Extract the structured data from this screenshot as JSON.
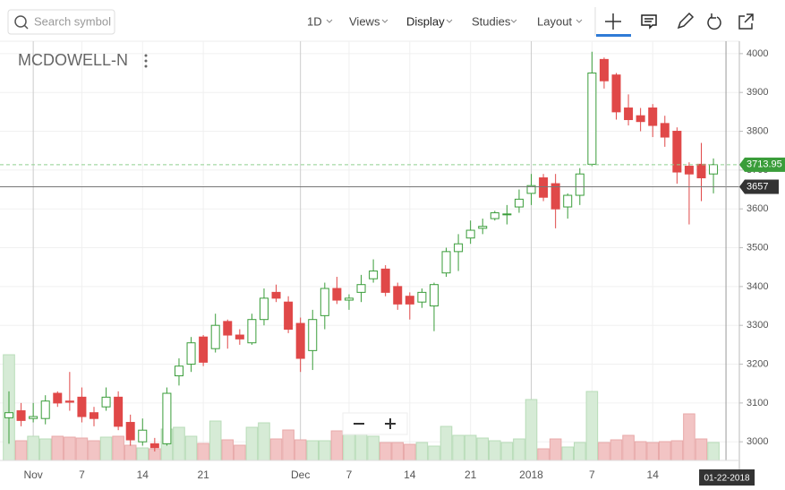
{
  "toolbar": {
    "search_placeholder": "Search symbol",
    "interval": "1D",
    "menus": [
      "Views",
      "Display",
      "Studies",
      "Layout"
    ]
  },
  "chart_data": {
    "type": "candlestick",
    "symbol": "MCDOWELL-N",
    "categories": [
      null,
      null,
      "Nov",
      null,
      null,
      null,
      "7",
      null,
      null,
      null,
      null,
      "14",
      null,
      null,
      null,
      null,
      "21",
      null,
      null,
      null,
      null,
      null,
      null,
      null,
      "Dec",
      null,
      null,
      null,
      "7",
      null,
      null,
      null,
      null,
      "14",
      null,
      null,
      null,
      null,
      "21",
      null,
      null,
      null,
      null,
      "2018",
      null,
      null,
      null,
      null,
      "7",
      null,
      null,
      null,
      null,
      "14",
      null,
      null,
      null,
      null,
      null
    ],
    "open": [
      3062,
      3080,
      3060,
      3060,
      3125,
      3105,
      3115,
      3075,
      3090,
      3115,
      3050,
      3000,
      2995,
      2995,
      3170,
      3200,
      3270,
      3240,
      3310,
      3275,
      3255,
      3315,
      3385,
      3360,
      3305,
      3235,
      3325,
      3395,
      3365,
      3385,
      3420,
      3445,
      3400,
      3375,
      3360,
      3350,
      3435,
      3490,
      3525,
      3550,
      3575,
      3585,
      3605,
      3640,
      3680,
      3665,
      3605,
      3635,
      3715,
      3985,
      3945,
      3860,
      3840,
      3860,
      3820,
      3800,
      3710,
      3715,
      3690
    ],
    "high": [
      3130,
      3100,
      3100,
      3120,
      3130,
      3180,
      3140,
      3090,
      3140,
      3130,
      3070,
      3060,
      3010,
      3140,
      3215,
      3270,
      3275,
      3330,
      3315,
      3290,
      3330,
      3395,
      3405,
      3375,
      3320,
      3340,
      3410,
      3425,
      3380,
      3430,
      3470,
      3455,
      3410,
      3385,
      3395,
      3410,
      3500,
      3535,
      3570,
      3575,
      3595,
      3610,
      3650,
      3690,
      3690,
      3690,
      3640,
      3705,
      4005,
      3990,
      3950,
      3895,
      3860,
      3870,
      3840,
      3810,
      3720,
      3770,
      3730
    ],
    "low": [
      2995,
      3040,
      3050,
      3045,
      3090,
      3080,
      3050,
      3040,
      3080,
      3030,
      2990,
      2990,
      2975,
      2990,
      3145,
      3180,
      3195,
      3230,
      3240,
      3250,
      3250,
      3300,
      3360,
      3280,
      3180,
      3185,
      3290,
      3355,
      3340,
      3360,
      3410,
      3375,
      3340,
      3315,
      3345,
      3285,
      3425,
      3440,
      3510,
      3535,
      3570,
      3560,
      3590,
      3610,
      3620,
      3550,
      3575,
      3610,
      3710,
      3910,
      3830,
      3815,
      3800,
      3785,
      3760,
      3665,
      3560,
      3620,
      3640
    ],
    "close": [
      3075,
      3055,
      3065,
      3105,
      3100,
      3102,
      3065,
      3060,
      3115,
      3040,
      3005,
      3030,
      2985,
      3125,
      3195,
      3255,
      3205,
      3300,
      3275,
      3265,
      3315,
      3370,
      3370,
      3290,
      3215,
      3315,
      3395,
      3365,
      3370,
      3405,
      3440,
      3385,
      3355,
      3355,
      3385,
      3405,
      3490,
      3510,
      3545,
      3555,
      3590,
      3587,
      3625,
      3660,
      3630,
      3600,
      3635,
      3690,
      3950,
      3930,
      3850,
      3830,
      3825,
      3815,
      3785,
      3695,
      3690,
      3680,
      3714
    ],
    "volume": [
      118,
      22,
      27,
      24,
      27,
      26,
      25,
      22,
      26,
      27,
      17,
      14,
      13,
      35,
      37,
      27,
      19,
      44,
      23,
      17,
      37,
      42,
      24,
      34,
      23,
      22,
      22,
      33,
      30,
      30,
      27,
      20,
      20,
      18,
      20,
      16,
      38,
      28,
      28,
      25,
      22,
      20,
      24,
      68,
      13,
      24,
      15,
      20,
      77,
      20,
      23,
      28,
      21,
      20,
      21,
      22,
      52,
      24,
      20
    ],
    "volume_ylim": [
      0,
      120
    ],
    "ylim": [
      2952,
      4032
    ],
    "yticks": [
      3000,
      3100,
      3200,
      3300,
      3400,
      3500,
      3600,
      3700,
      3800,
      3900,
      4000
    ],
    "last_price": 3713.95,
    "crosshair_price": 3657,
    "crosshair_date": "01-22-2018",
    "up_color": "#3a9d3a",
    "down_color": "#e04848",
    "grid": true
  }
}
